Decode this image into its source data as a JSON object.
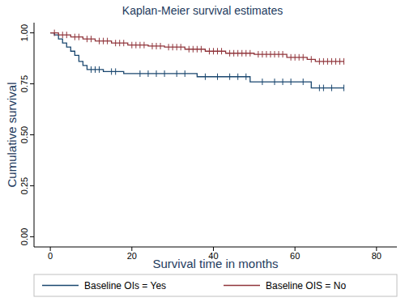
{
  "chart_data": {
    "type": "step",
    "title": "Kaplan-Meier survival estimates",
    "x_label": "Survival time in months",
    "y_label": "Cumulative survival",
    "xlim": [
      -4,
      85
    ],
    "ylim": [
      -0.05,
      1.05
    ],
    "xticks": [
      0,
      20,
      40,
      60,
      80
    ],
    "yticks": [
      {
        "value": 0,
        "label": "0.00"
      },
      {
        "value": 0.25,
        "label": "0.25"
      },
      {
        "value": 0.5,
        "label": "0.50"
      },
      {
        "value": 0.75,
        "label": "0.75"
      },
      {
        "value": 1,
        "label": "1.00"
      }
    ],
    "grid": false,
    "legend": "bottom",
    "series": [
      {
        "name": "Baseline OIs = Yes",
        "color": "#1a476f",
        "x": [
          0,
          1,
          2,
          3,
          4,
          5,
          6,
          7,
          8,
          9,
          13,
          18,
          36,
          49,
          64,
          72
        ],
        "values": [
          1.0,
          0.99,
          0.97,
          0.95,
          0.93,
          0.91,
          0.89,
          0.86,
          0.84,
          0.82,
          0.81,
          0.8,
          0.785,
          0.76,
          0.73,
          0.73
        ],
        "censored": [
          10,
          11,
          12,
          15,
          16,
          22,
          24,
          26,
          28,
          31,
          33,
          38,
          41,
          44,
          46,
          48,
          52,
          55,
          57,
          59,
          62,
          66,
          67,
          69,
          72
        ]
      },
      {
        "name": "Baseline OIS = No",
        "color": "#90353b",
        "x": [
          0,
          2,
          5,
          8,
          11,
          15,
          19,
          24,
          28,
          33,
          38,
          43,
          50,
          58,
          63,
          65,
          72
        ],
        "values": [
          1.0,
          0.99,
          0.98,
          0.97,
          0.96,
          0.95,
          0.94,
          0.935,
          0.93,
          0.92,
          0.91,
          0.9,
          0.895,
          0.88,
          0.87,
          0.86,
          0.86
        ],
        "censored": [
          1,
          3,
          4,
          6,
          7,
          9,
          10,
          12,
          13,
          14,
          16,
          17,
          18,
          20,
          21,
          22,
          23,
          25,
          26,
          27,
          29,
          30,
          31,
          32,
          34,
          35,
          36,
          37,
          39,
          40,
          41,
          42,
          44,
          45,
          46,
          47,
          48,
          49,
          51,
          52,
          53,
          54,
          55,
          56,
          57,
          59,
          60,
          61,
          62,
          64,
          66,
          67,
          68,
          69,
          70,
          71,
          72
        ]
      }
    ]
  }
}
